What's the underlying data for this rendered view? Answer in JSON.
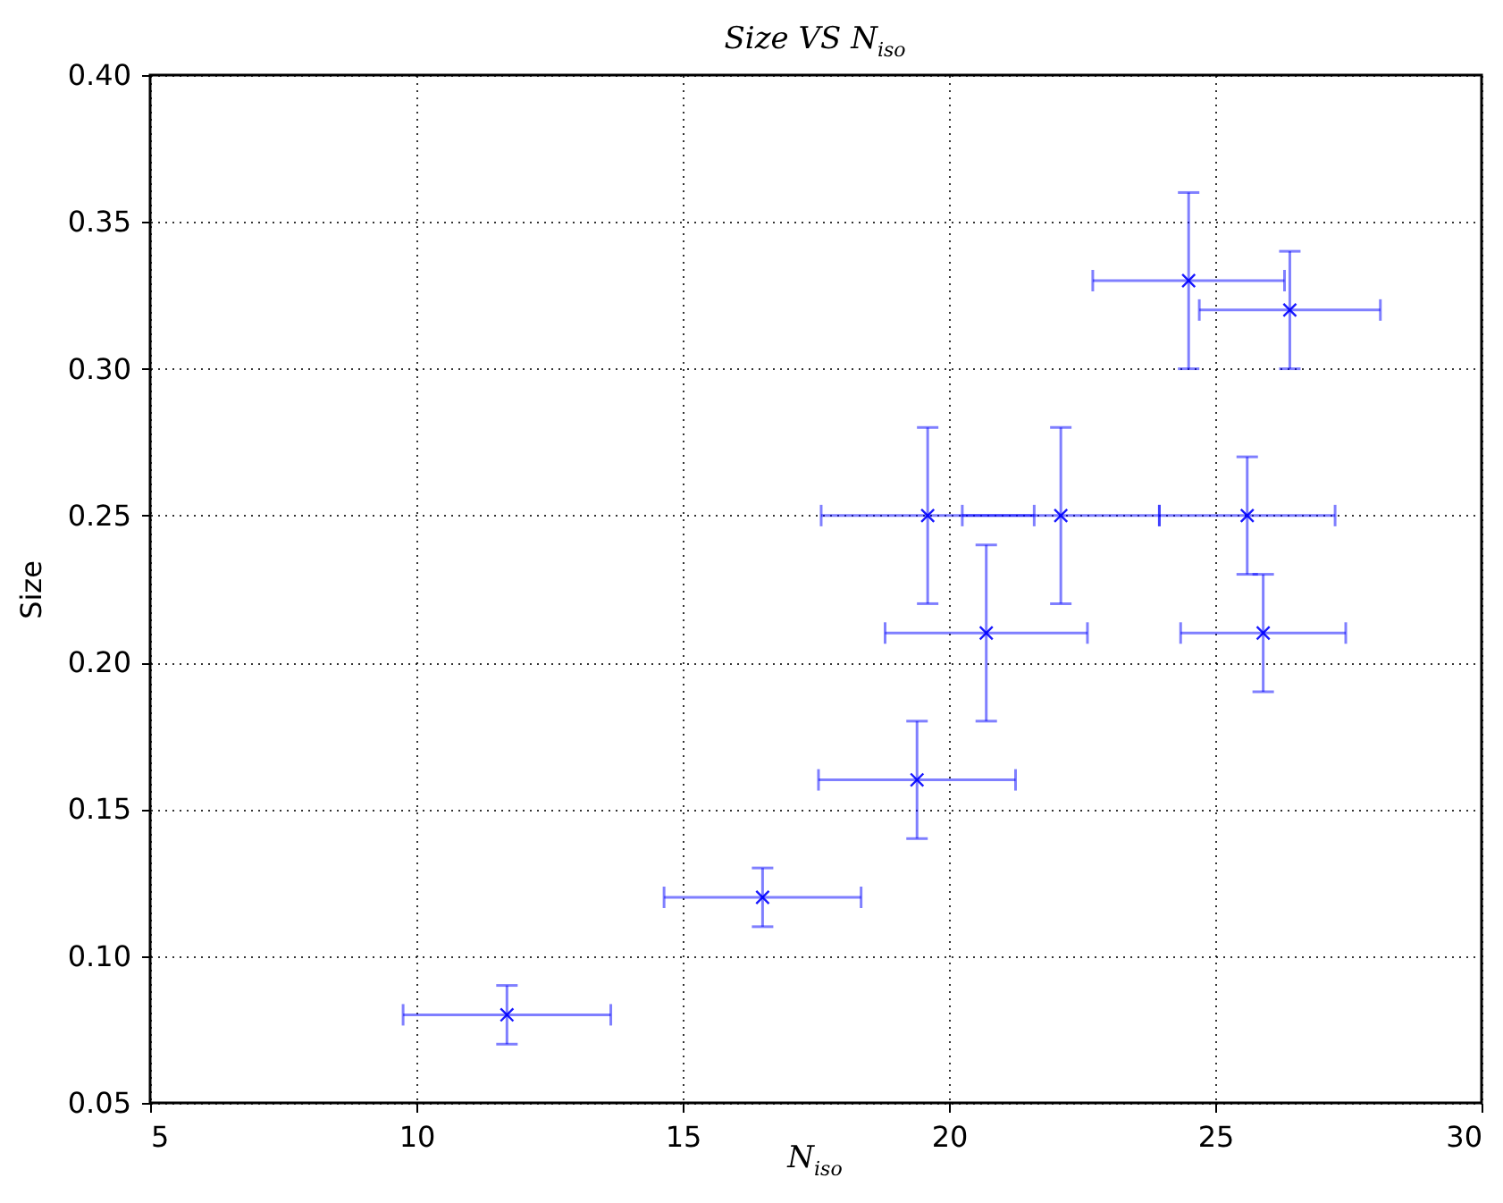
{
  "chart_data": {
    "type": "scatter",
    "title": "Size VS N$_{iso}$",
    "xlabel": "N$_{iso}$",
    "ylabel": "Size",
    "x": [
      11.7,
      16.5,
      19.4,
      20.7,
      19.6,
      22.1,
      25.6,
      25.9,
      24.5,
      26.4
    ],
    "series": [
      {
        "color": "#0000ff",
        "values": [
          0.08,
          0.12,
          0.16,
          0.21,
          0.25,
          0.25,
          0.25,
          0.21,
          0.33,
          0.32
        ],
        "errors": [
          0.01,
          0.01,
          0.02,
          0.03,
          0.03,
          0.03,
          0.02,
          0.02,
          0.03,
          0.02
        ],
        "xerrors": [
          1.95,
          1.85,
          1.85,
          1.9,
          2.0,
          1.85,
          1.65,
          1.55,
          1.8,
          1.7
        ]
      }
    ],
    "xlim": [
      5,
      30
    ],
    "xticks": [
      5,
      10,
      15,
      20,
      25,
      30
    ],
    "ylim": [
      0.05,
      0.4
    ],
    "yticks": [
      0.05,
      {
        "value": 0.1,
        "label": "0.10"
      },
      0.15,
      {
        "value": 0.2,
        "label": "0.20"
      },
      0.25,
      {
        "value": 0.3,
        "label": "0.30"
      },
      0.35,
      {
        "value": 0.4,
        "label": "0.40"
      }
    ],
    "grid": true,
    "marker": "cross"
  }
}
